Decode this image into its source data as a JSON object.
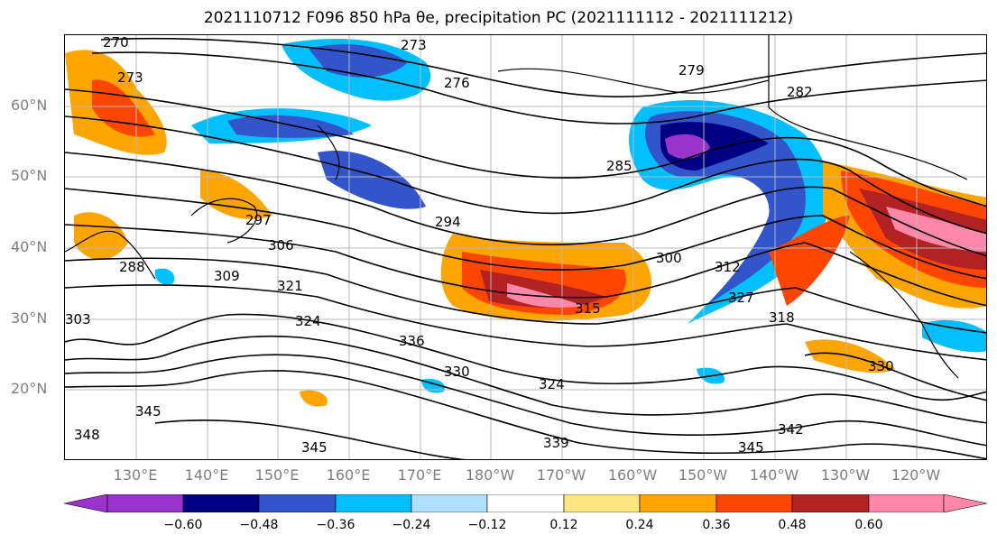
{
  "title": "2021110712 F096 850 hPa θe, precipitation PC (2021111112 - 2021111212)",
  "map": {
    "lat_labels": [
      "60°N",
      "50°N",
      "40°N",
      "30°N",
      "20°N"
    ],
    "lon_labels": [
      "130°E",
      "140°E",
      "150°E",
      "160°E",
      "170°E",
      "180°W",
      "170°W",
      "160°W",
      "150°W",
      "140°W",
      "130°W",
      "120°W"
    ],
    "contour_labels": [
      "270",
      "273",
      "273",
      "276",
      "279",
      "282",
      "285",
      "288",
      "294",
      "297",
      "300",
      "303",
      "306",
      "309",
      "312",
      "315",
      "318",
      "321",
      "324",
      "324",
      "327",
      "330",
      "330",
      "336",
      "339",
      "342",
      "345",
      "345",
      "345",
      "348"
    ]
  },
  "colorbar": {
    "ticks": [
      "−0.60",
      "−0.48",
      "−0.36",
      "−0.24",
      "−0.12",
      "0.12",
      "0.24",
      "0.36",
      "0.48",
      "0.60"
    ],
    "colors": [
      "#9933cc",
      "#000080",
      "#3355cc",
      "#00bfff",
      "#b0e0ff",
      "#ffffff",
      "#ffe680",
      "#ffa500",
      "#ff4500",
      "#b22222",
      "#ff88aa",
      "#ff88aa"
    ]
  }
}
